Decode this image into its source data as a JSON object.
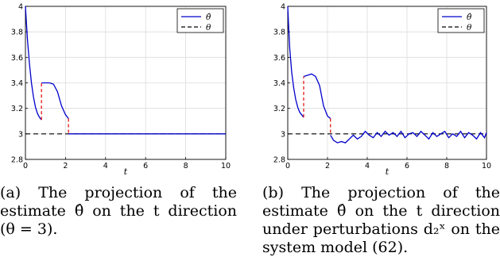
{
  "chart_data": [
    {
      "type": "line",
      "xlabel": "t",
      "ylabel": "",
      "xlim": [
        0,
        10
      ],
      "ylim": [
        2.8,
        4
      ],
      "xticks": [
        "0",
        "2",
        "4",
        "6",
        "8",
        "10"
      ],
      "yticks": [
        "2.8",
        "3",
        "3.2",
        "3.4",
        "3.6",
        "3.8",
        "4"
      ],
      "grid": true,
      "legend_position": "top-right",
      "series": [
        {
          "name": "θ̂",
          "color": "#0000cc",
          "style": "solid",
          "segments": [
            {
              "x": [
                0,
                0.05,
                0.1,
                0.2,
                0.3,
                0.4,
                0.5,
                0.6,
                0.7,
                0.8
              ],
              "y": [
                4.0,
                3.87,
                3.74,
                3.55,
                3.4,
                3.29,
                3.21,
                3.16,
                3.13,
                3.11
              ]
            },
            {
              "x": [
                0.8,
                1.0,
                1.2,
                1.4,
                1.6,
                1.8,
                2.0,
                2.15
              ],
              "y": [
                3.4,
                3.4,
                3.4,
                3.39,
                3.33,
                3.22,
                3.15,
                3.12
              ]
            },
            {
              "x": [
                2.15,
                4,
                6,
                8,
                10
              ],
              "y": [
                3.0,
                3.0,
                3.0,
                3.0,
                3.0
              ]
            }
          ]
        },
        {
          "name": "θ",
          "color": "#000000",
          "style": "dashed",
          "x": [
            0,
            10
          ],
          "y": [
            3,
            3
          ]
        }
      ],
      "jumps": [
        {
          "x": 0.8,
          "from": 3.11,
          "to": 3.4,
          "color": "#e60000"
        },
        {
          "x": 2.15,
          "from": 3.12,
          "to": 3.0,
          "color": "#e60000"
        }
      ]
    },
    {
      "type": "line",
      "xlabel": "t",
      "ylabel": "",
      "xlim": [
        0,
        10
      ],
      "ylim": [
        2.8,
        4
      ],
      "xticks": [
        "0",
        "2",
        "4",
        "6",
        "8",
        "10"
      ],
      "yticks": [
        "2.8",
        "3",
        "3.2",
        "3.4",
        "3.6",
        "3.8",
        "4"
      ],
      "grid": true,
      "legend_position": "top-right",
      "series": [
        {
          "name": "θ̂",
          "color": "#0000cc",
          "style": "solid",
          "segments": [
            {
              "x": [
                0,
                0.05,
                0.1,
                0.2,
                0.3,
                0.4,
                0.5,
                0.6,
                0.7,
                0.8
              ],
              "y": [
                4.0,
                3.82,
                3.67,
                3.48,
                3.36,
                3.27,
                3.21,
                3.17,
                3.15,
                3.13
              ]
            },
            {
              "x": [
                0.8,
                1.0,
                1.2,
                1.4,
                1.6,
                1.8,
                2.0,
                2.15
              ],
              "y": [
                3.45,
                3.46,
                3.47,
                3.45,
                3.38,
                3.22,
                3.14,
                3.12
              ]
            },
            {
              "x": [
                2.15,
                2.3,
                2.5,
                2.7,
                2.9,
                3.1,
                3.3,
                3.5,
                3.7,
                3.9,
                4.1,
                4.3,
                4.5,
                4.7,
                4.9,
                5.1,
                5.3,
                5.5,
                5.7,
                5.9,
                6.1,
                6.3,
                6.5,
                6.7,
                6.9,
                7.1,
                7.3,
                7.5,
                7.7,
                7.9,
                8.1,
                8.3,
                8.5,
                8.7,
                8.9,
                9.1,
                9.3,
                9.5,
                9.7,
                9.9,
                10.0
              ],
              "y": [
                2.99,
                2.95,
                2.93,
                2.94,
                2.93,
                2.96,
                2.99,
                2.96,
                2.98,
                3.02,
                2.99,
                2.97,
                3.01,
                2.98,
                3.02,
                2.99,
                3.01,
                2.98,
                3.02,
                2.97,
                3.0,
                3.01,
                2.98,
                3.02,
                2.99,
                2.96,
                3.01,
                2.98,
                3.0,
                3.02,
                2.97,
                3.0,
                2.98,
                3.02,
                2.97,
                3.01,
                2.99,
                2.96,
                3.01,
                2.97,
                3.01
              ]
            }
          ]
        },
        {
          "name": "θ",
          "color": "#000000",
          "style": "dashed",
          "x": [
            0,
            10
          ],
          "y": [
            3,
            3
          ]
        }
      ],
      "jumps": [
        {
          "x": 0.8,
          "from": 3.13,
          "to": 3.45,
          "color": "#e60000"
        },
        {
          "x": 2.15,
          "from": 3.12,
          "to": 2.99,
          "color": "#e60000"
        }
      ]
    }
  ],
  "captions": [
    "(a) The projection of the estimate θ̂ on the t direction (θ = 3).",
    "(b) The projection of the estimate θ̂ on the t direction under perturbations d₂ˣ on the system model (62)."
  ]
}
